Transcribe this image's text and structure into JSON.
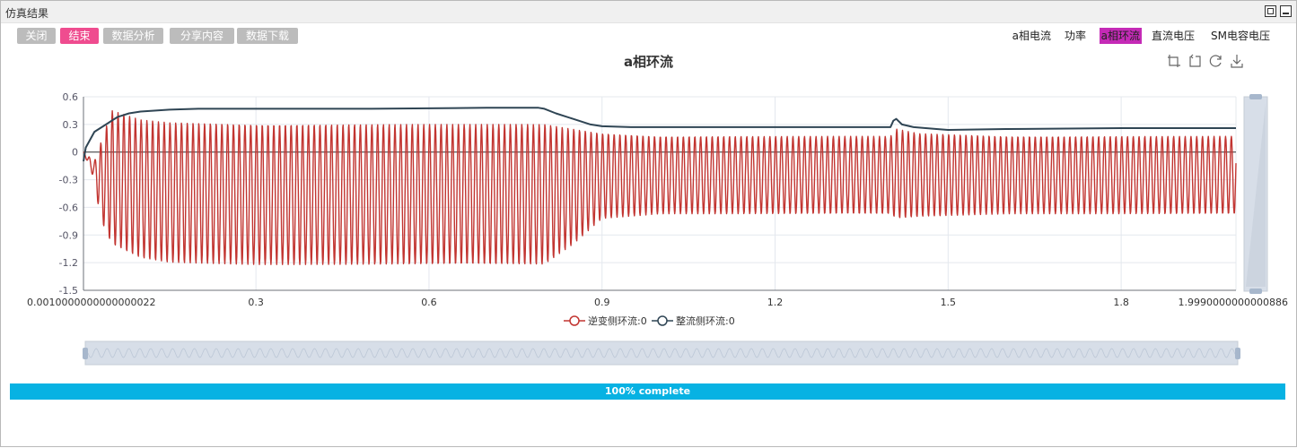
{
  "window": {
    "title": "仿真结果"
  },
  "toolbar": {
    "buttons": [
      {
        "label": "关闭",
        "active": false
      },
      {
        "label": "结束",
        "active": true
      },
      {
        "label": "数据分析",
        "active": false
      },
      {
        "label": "分享内容",
        "active": false
      },
      {
        "label": "数据下载",
        "active": false
      }
    ]
  },
  "tabs": [
    {
      "label": "a相电流",
      "active": false
    },
    {
      "label": "功率",
      "active": false
    },
    {
      "label": "a相环流",
      "active": true
    },
    {
      "label": "直流电压",
      "active": false
    },
    {
      "label": "SM电容电压",
      "active": false
    }
  ],
  "chart_tools": [
    "zoom-icon",
    "zoom-reset-icon",
    "restore-icon",
    "download-icon"
  ],
  "progress": {
    "value": 1.0,
    "text": "100% complete",
    "color": "#07b2e3"
  },
  "chart_data": {
    "type": "line",
    "title": "a相环流",
    "xlabel": "",
    "ylabel": "",
    "xlim": [
      0.001,
      1.999
    ],
    "ylim": [
      -1.5,
      0.6
    ],
    "x_tick_labels": [
      "0.0010000000000000022",
      "0.3",
      "0.6",
      "0.9",
      "1.2",
      "1.5",
      "1.8",
      "1.9990000000000886"
    ],
    "y_tick_labels": [
      "0.6",
      "0.3",
      "0",
      "-0.3",
      "-0.6",
      "-0.9",
      "-1.2",
      "-1.5"
    ],
    "grid": true,
    "legend_position": "bottom",
    "series": [
      {
        "name": "逆变侧环流:0",
        "color": "#c23531",
        "style": "oscillation",
        "oscillation_frequency": 100,
        "envelope": [
          {
            "x": 0.001,
            "upper": 0.0,
            "lower": 0.0
          },
          {
            "x": 0.02,
            "upper": -0.1,
            "lower": -0.3
          },
          {
            "x": 0.03,
            "upper": 0.08,
            "lower": -0.72
          },
          {
            "x": 0.05,
            "upper": 0.45,
            "lower": -1.0
          },
          {
            "x": 0.1,
            "upper": 0.35,
            "lower": -1.15
          },
          {
            "x": 0.15,
            "upper": 0.32,
            "lower": -1.2
          },
          {
            "x": 0.3,
            "upper": 0.3,
            "lower": -1.22
          },
          {
            "x": 0.6,
            "upper": 0.3,
            "lower": -1.22
          },
          {
            "x": 0.8,
            "upper": 0.3,
            "lower": -1.22
          },
          {
            "x": 0.85,
            "upper": 0.25,
            "lower": -1.0
          },
          {
            "x": 0.9,
            "upper": 0.2,
            "lower": -0.72
          },
          {
            "x": 1.0,
            "upper": 0.17,
            "lower": -0.67
          },
          {
            "x": 1.4,
            "upper": 0.17,
            "lower": -0.67
          },
          {
            "x": 1.41,
            "upper": 0.25,
            "lower": -0.72
          },
          {
            "x": 1.45,
            "upper": 0.2,
            "lower": -0.7
          },
          {
            "x": 1.6,
            "upper": 0.17,
            "lower": -0.67
          },
          {
            "x": 1.999,
            "upper": 0.17,
            "lower": -0.67
          }
        ]
      },
      {
        "name": "整流侧环流:0",
        "color": "#2f4554",
        "style": "line",
        "x": [
          0.001,
          0.005,
          0.02,
          0.04,
          0.06,
          0.08,
          0.1,
          0.15,
          0.2,
          0.3,
          0.5,
          0.7,
          0.79,
          0.8,
          0.82,
          0.85,
          0.88,
          0.9,
          0.95,
          1.0,
          1.2,
          1.4,
          1.405,
          1.41,
          1.42,
          1.44,
          1.48,
          1.5,
          1.6,
          1.8,
          1.999
        ],
        "values": [
          -0.1,
          0.05,
          0.22,
          0.3,
          0.38,
          0.42,
          0.44,
          0.46,
          0.47,
          0.47,
          0.47,
          0.48,
          0.48,
          0.47,
          0.42,
          0.36,
          0.3,
          0.28,
          0.27,
          0.27,
          0.27,
          0.27,
          0.34,
          0.36,
          0.3,
          0.27,
          0.25,
          0.24,
          0.25,
          0.26,
          0.26
        ]
      }
    ]
  }
}
